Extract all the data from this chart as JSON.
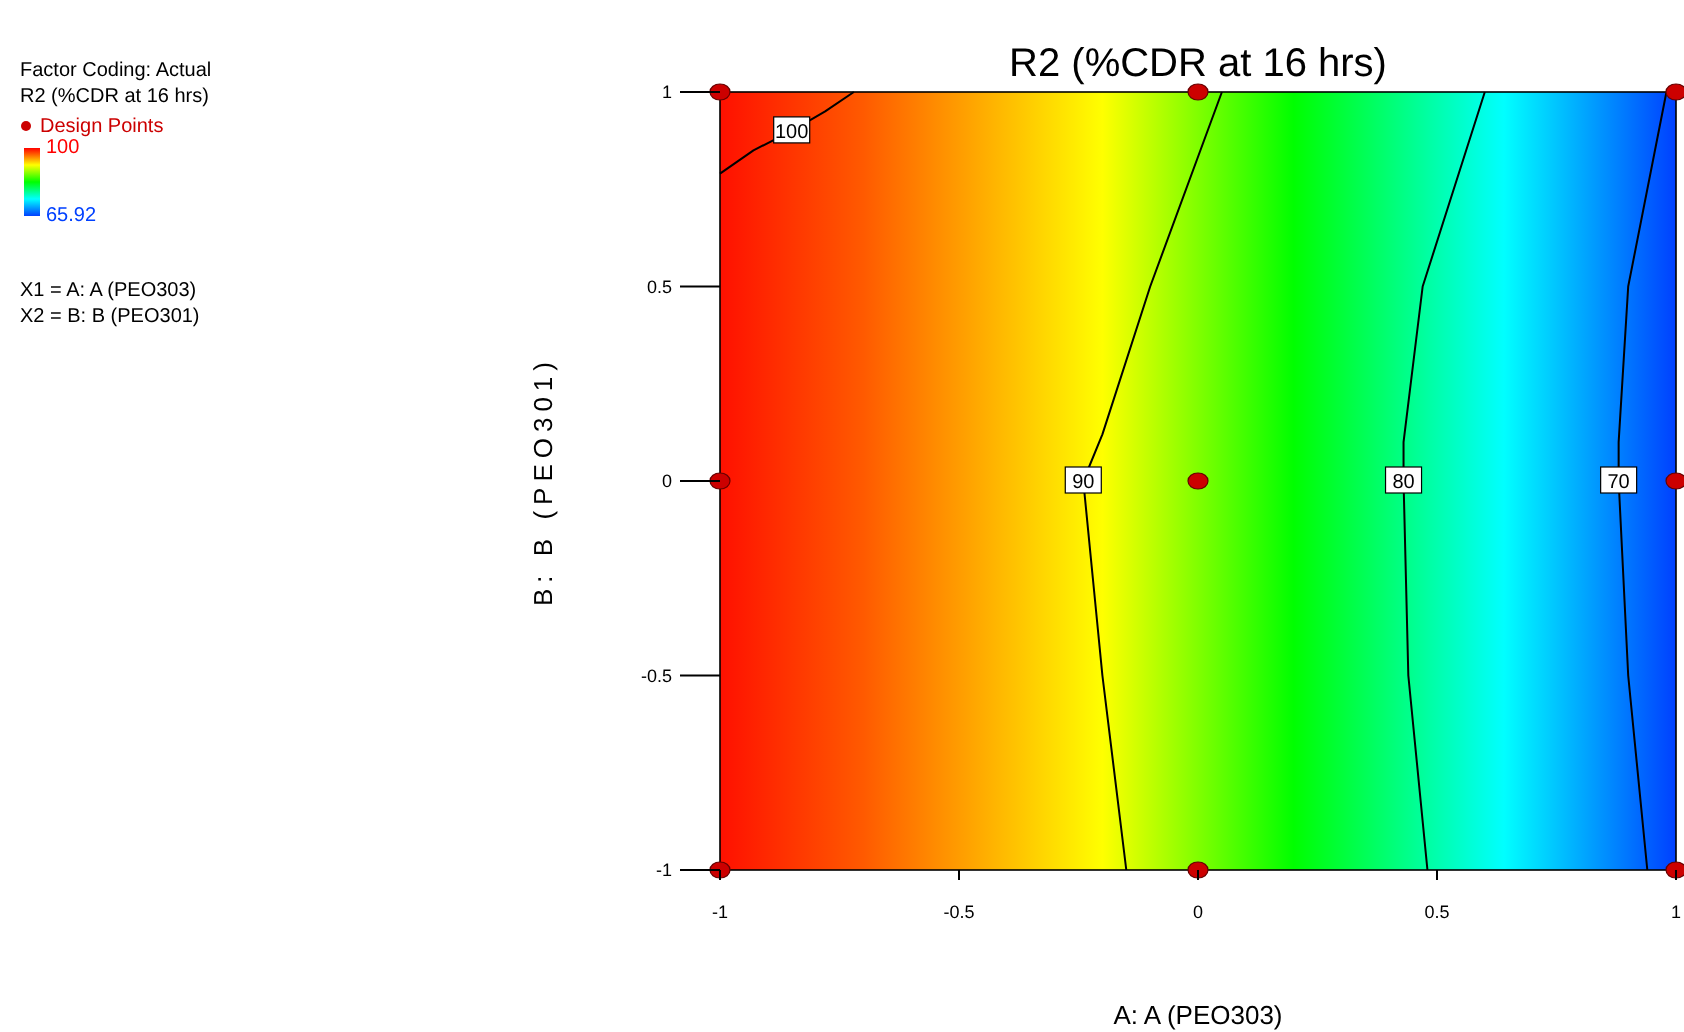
{
  "chart_data": {
    "type": "line",
    "title": "R2 (%CDR at 16 hrs)",
    "xlabel": "A: A (PEO303)",
    "ylabel": "B: B (PEO301)",
    "annotations": [
      "Factor Coding: Actual",
      "R2 (%CDR at 16 hrs)",
      "X1 = A: A (PEO303)",
      "X2 = B: B (PEO301)"
    ],
    "clim": [
      65.92,
      100
    ],
    "cticks": [
      100,
      65.92
    ],
    "xlim": [
      -1,
      1
    ],
    "ylim": [
      -1,
      1
    ],
    "xticks": [
      -1,
      -0.5,
      0,
      0.5,
      1
    ],
    "yticks": [
      -1,
      -0.5,
      0,
      0.5,
      1
    ],
    "legend": "left",
    "grid": false,
    "series": [
      {
        "type": "line",
        "name": "100",
        "color": "#000000",
        "x": [
          -1,
          -0.93,
          -0.85,
          -0.78,
          -0.72
        ],
        "values": [
          0.79,
          0.85,
          0.9,
          0.95,
          1
        ]
      },
      {
        "type": "line",
        "name": "90",
        "color": "#000000",
        "x": [
          0.05,
          -0.1,
          -0.2,
          -0.24,
          -0.22,
          -0.2,
          -0.15
        ],
        "values": [
          1,
          0.5,
          0.12,
          0,
          -0.25,
          -0.5,
          -1
        ]
      },
      {
        "type": "line",
        "name": "80",
        "color": "#000000",
        "x": [
          0.6,
          0.47,
          0.43,
          0.43,
          0.44,
          0.48
        ],
        "values": [
          1,
          0.5,
          0.1,
          0,
          -0.5,
          -1
        ]
      },
      {
        "type": "line",
        "name": "70",
        "color": "#000000",
        "x": [
          0.98,
          0.9,
          0.88,
          0.88,
          0.9,
          0.94
        ],
        "values": [
          1,
          0.5,
          0.1,
          0,
          -0.5,
          -1
        ]
      },
      {
        "type": "scatter",
        "name": "Design Points",
        "color": "#cc0000",
        "marker": "circle",
        "x": [
          -1,
          0,
          1,
          -1,
          0,
          1,
          -1,
          0,
          1
        ],
        "values": [
          1,
          1,
          1,
          0,
          0,
          0,
          -1,
          -1,
          -1
        ]
      }
    ]
  }
}
